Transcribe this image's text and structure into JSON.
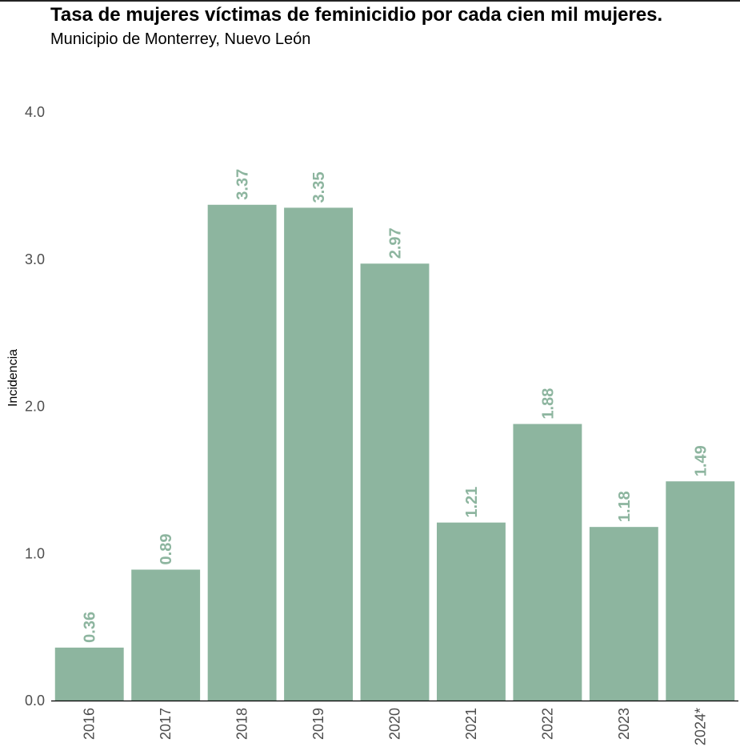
{
  "title": "Tasa de mujeres víctimas de feminicidio por cada cien mil mujeres.",
  "subtitle": "Municipio de Monterrey, Nuevo León",
  "colors": {
    "bar": "#8db59f",
    "label": "#8db59f",
    "axis": "#000000",
    "tick": "#4d4d4d"
  },
  "chart_data": {
    "type": "bar",
    "categories": [
      "2016",
      "2017",
      "2018",
      "2019",
      "2020",
      "2021",
      "2022",
      "2023",
      "2024*"
    ],
    "values": [
      0.36,
      0.89,
      3.37,
      3.35,
      2.97,
      1.21,
      1.88,
      1.18,
      1.49
    ],
    "data_labels": [
      "0.36",
      "0.89",
      "3.37",
      "3.35",
      "2.97",
      "1.21",
      "1.88",
      "1.18",
      "1.49"
    ],
    "ylabel": "Incidencia",
    "xlabel": "",
    "ylim": [
      0,
      4
    ],
    "yticks": [
      "0.0",
      "1.0",
      "2.0",
      "3.0",
      "4.0"
    ],
    "ytick_values": [
      0,
      1,
      2,
      3,
      4
    ],
    "grid": false,
    "legend": "none"
  }
}
